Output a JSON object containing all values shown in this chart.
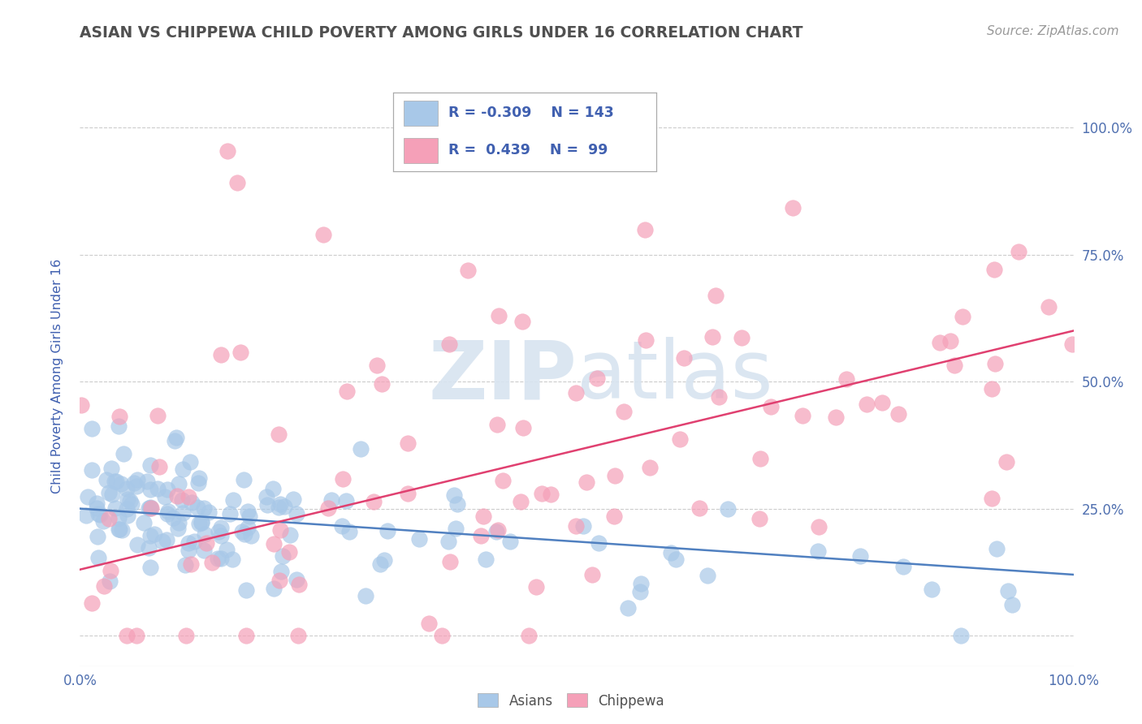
{
  "title": "ASIAN VS CHIPPEWA CHILD POVERTY AMONG GIRLS UNDER 16 CORRELATION CHART",
  "source": "Source: ZipAtlas.com",
  "ylabel": "Child Poverty Among Girls Under 16",
  "xlim": [
    0.0,
    1.0
  ],
  "ylim": [
    -0.06,
    1.08
  ],
  "asian_R": -0.309,
  "asian_N": 143,
  "chippewa_R": 0.439,
  "chippewa_N": 99,
  "asian_color": "#a8c8e8",
  "chippewa_color": "#f5a0b8",
  "asian_line_color": "#5080c0",
  "chippewa_line_color": "#e04070",
  "background_color": "#ffffff",
  "grid_color": "#cccccc",
  "title_color": "#505050",
  "label_color": "#4060b0",
  "watermark_color": "#d8e4f0",
  "tick_label_color": "#5070b0",
  "ytick_positions": [
    0.0,
    0.25,
    0.5,
    0.75,
    1.0
  ],
  "ytick_labels": [
    "",
    "25.0%",
    "50.0%",
    "75.0%",
    "100.0%"
  ],
  "xtick_labels": [
    "0.0%",
    "",
    "",
    "",
    "",
    "",
    "",
    "",
    "",
    "",
    "100.0%"
  ],
  "asian_line_intercept": 0.25,
  "asian_line_slope": -0.13,
  "chippewa_line_intercept": 0.13,
  "chippewa_line_slope": 0.47
}
